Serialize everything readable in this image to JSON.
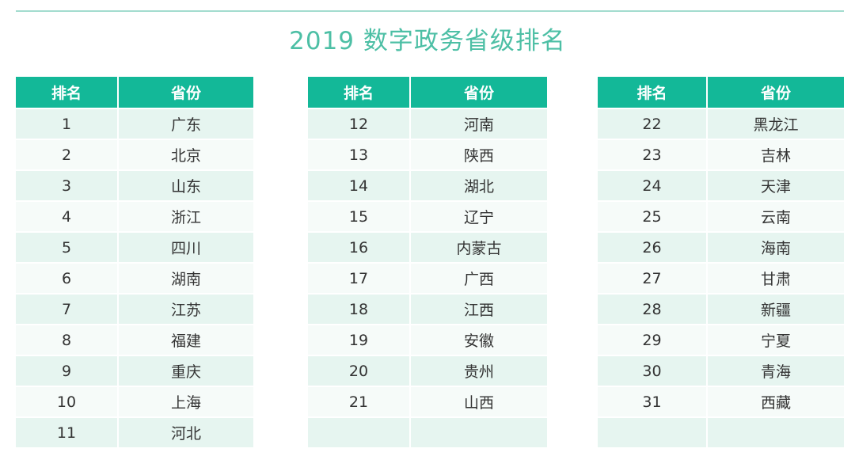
{
  "title": "2019 数字政务省级排名",
  "headers": {
    "rank": "排名",
    "province": "省份"
  },
  "tables": [
    {
      "rows": [
        {
          "rank": "1",
          "province": "广东"
        },
        {
          "rank": "2",
          "province": "北京"
        },
        {
          "rank": "3",
          "province": "山东"
        },
        {
          "rank": "4",
          "province": "浙江"
        },
        {
          "rank": "5",
          "province": "四川"
        },
        {
          "rank": "6",
          "province": "湖南"
        },
        {
          "rank": "7",
          "province": "江苏"
        },
        {
          "rank": "8",
          "province": "福建"
        },
        {
          "rank": "9",
          "province": "重庆"
        },
        {
          "rank": "10",
          "province": "上海"
        },
        {
          "rank": "11",
          "province": "河北"
        }
      ]
    },
    {
      "rows": [
        {
          "rank": "12",
          "province": "河南"
        },
        {
          "rank": "13",
          "province": "陕西"
        },
        {
          "rank": "14",
          "province": "湖北"
        },
        {
          "rank": "15",
          "province": "辽宁"
        },
        {
          "rank": "16",
          "province": "内蒙古"
        },
        {
          "rank": "17",
          "province": "广西"
        },
        {
          "rank": "18",
          "province": "江西"
        },
        {
          "rank": "19",
          "province": "安徽"
        },
        {
          "rank": "20",
          "province": "贵州"
        },
        {
          "rank": "21",
          "province": "山西"
        },
        {
          "rank": "",
          "province": ""
        }
      ]
    },
    {
      "rows": [
        {
          "rank": "22",
          "province": "黑龙江"
        },
        {
          "rank": "23",
          "province": "吉林"
        },
        {
          "rank": "24",
          "province": "天津"
        },
        {
          "rank": "25",
          "province": "云南"
        },
        {
          "rank": "26",
          "province": "海南"
        },
        {
          "rank": "27",
          "province": "甘肃"
        },
        {
          "rank": "28",
          "province": "新疆"
        },
        {
          "rank": "29",
          "province": "宁夏"
        },
        {
          "rank": "30",
          "province": "青海"
        },
        {
          "rank": "31",
          "province": "西藏"
        },
        {
          "rank": "",
          "province": ""
        }
      ]
    }
  ]
}
